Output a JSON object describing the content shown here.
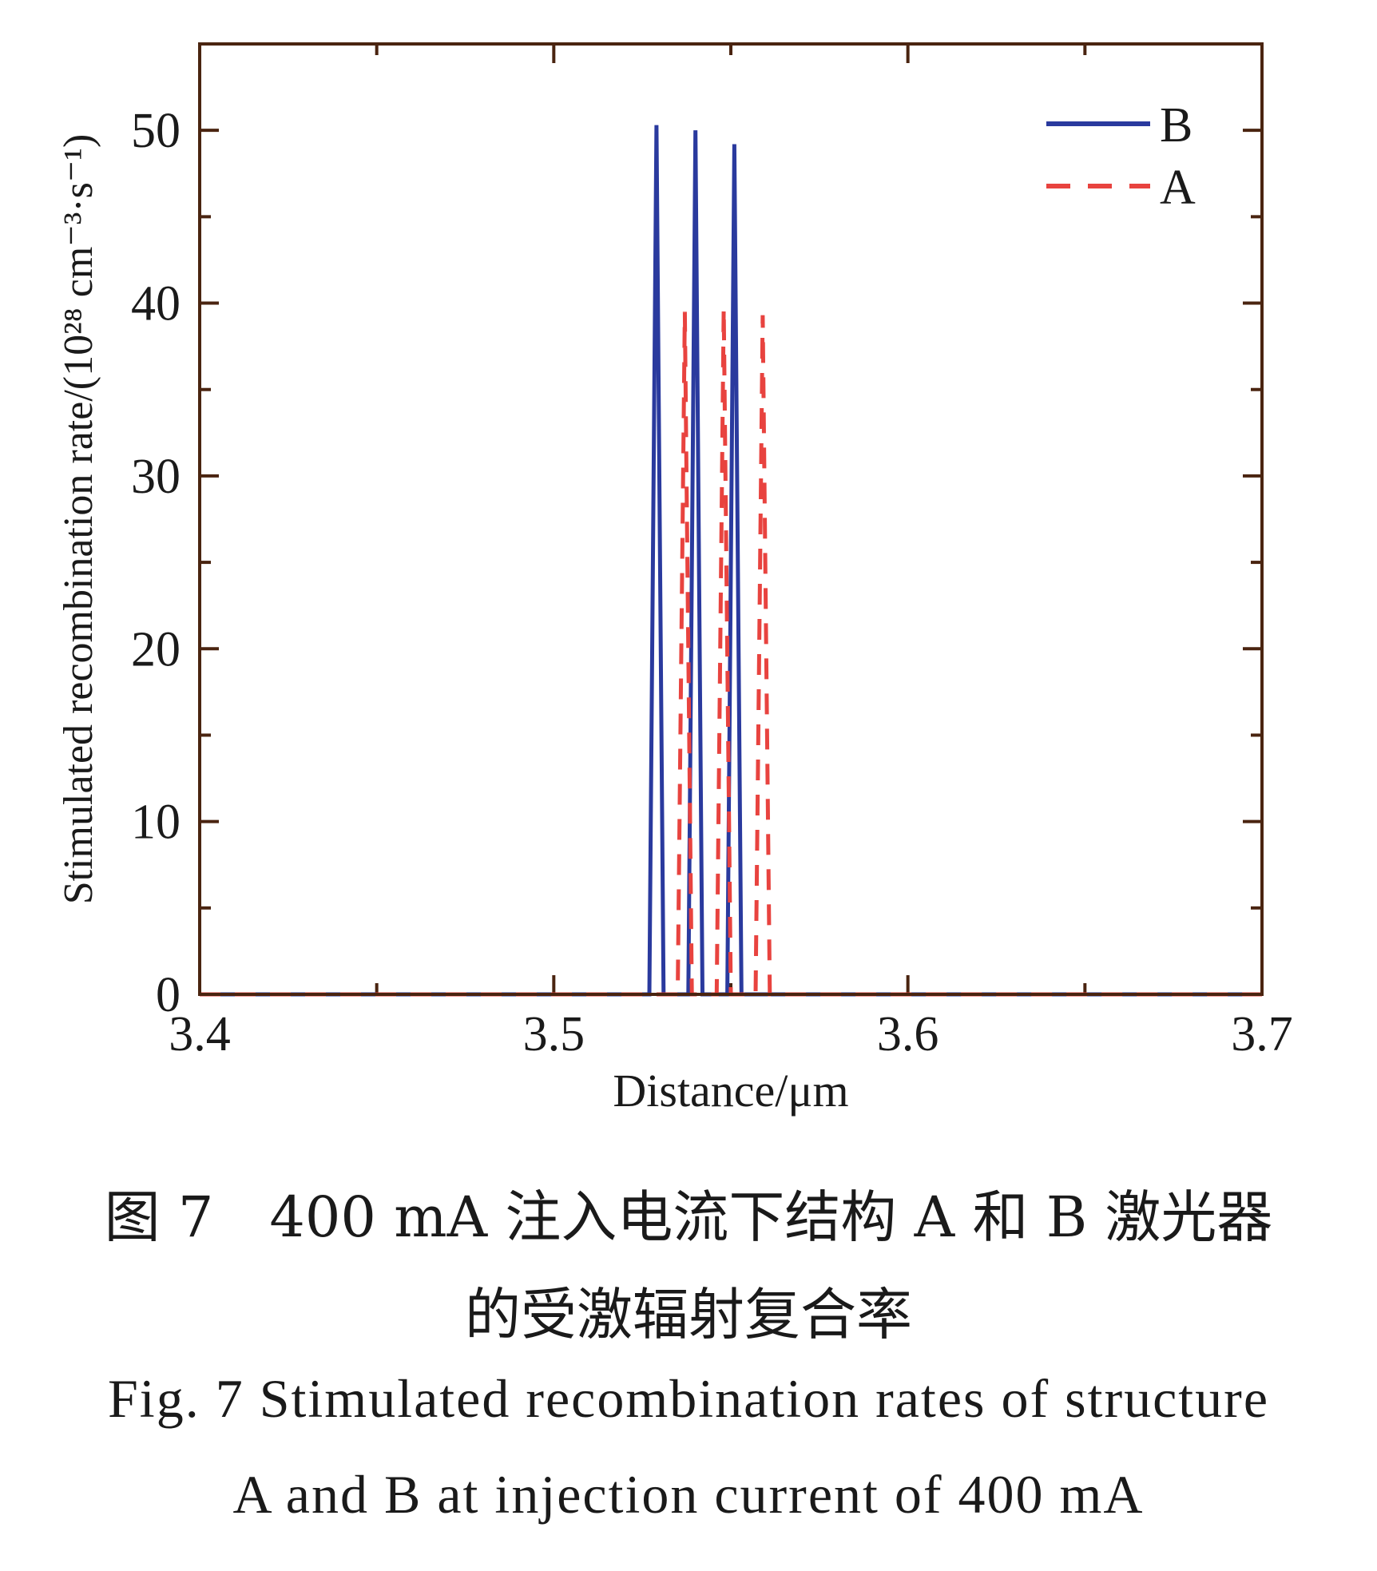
{
  "chart_data": {
    "type": "line",
    "xlabel": "Distance/μm",
    "ylabel": "Stimulated recombination rate/(10²⁸ cm⁻³·s⁻¹)",
    "xlim": [
      3.4,
      3.7
    ],
    "ylim": [
      0,
      55
    ],
    "xticks": [
      "3.4",
      "3.5",
      "3.6",
      "3.7"
    ],
    "xtick_values": [
      3.4,
      3.5,
      3.6,
      3.7
    ],
    "yticks": [
      "0",
      "10",
      "20",
      "30",
      "40",
      "50"
    ],
    "ytick_values": [
      0,
      10,
      20,
      30,
      40,
      50
    ],
    "grid": false,
    "legend_position": "top-right",
    "series": [
      {
        "name": "B",
        "color": "#2a3a9e",
        "style": "solid",
        "x": [
          3.4,
          3.527,
          3.529,
          3.531,
          3.538,
          3.54,
          3.542,
          3.549,
          3.551,
          3.553,
          3.7
        ],
        "y": [
          0,
          0,
          50.3,
          0,
          0,
          50.0,
          0,
          0,
          49.2,
          0,
          0
        ]
      },
      {
        "name": "A",
        "color": "#e8433f",
        "style": "dashed",
        "x": [
          3.4,
          3.535,
          3.537,
          3.539,
          3.546,
          3.548,
          3.55,
          3.557,
          3.559,
          3.561,
          3.7
        ],
        "y": [
          0,
          0,
          39.5,
          0,
          0,
          39.7,
          0,
          0,
          39.3,
          0,
          0
        ]
      }
    ]
  },
  "caption": {
    "zh_line1": "图 7　400 mA 注入电流下结构 A 和 B 激光器",
    "zh_line2": "的受激辐射复合率",
    "en_line1": "Fig. 7   Stimulated recombination rates of structure",
    "en_line2": "A and B at injection current of 400 mA"
  }
}
